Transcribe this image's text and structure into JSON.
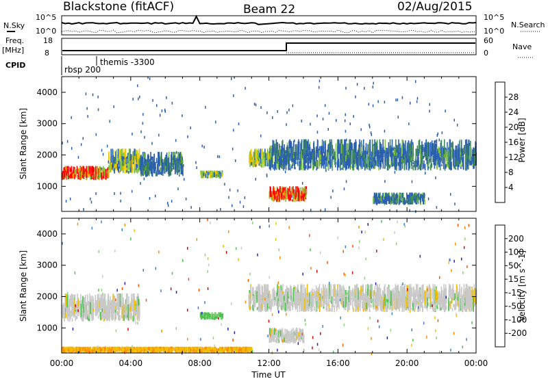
{
  "header": {
    "station": "Blackstone (fitACF)",
    "beam": "Beam 22",
    "date": "02/Aug/2015"
  },
  "top_panels": {
    "noise": {
      "left_label": "N.Sky",
      "right_label": "N.Search",
      "left_ticks": [
        "10^5",
        "10^0"
      ],
      "right_ticks": [
        "10^5",
        "10^0"
      ]
    },
    "freq": {
      "left_label_1": "Freq.",
      "left_label_2": "[MHz]",
      "right_label": "Nave",
      "left_ticks": [
        "18",
        "8"
      ],
      "right_ticks": [
        "60",
        "0"
      ]
    },
    "cpid": {
      "label": "CPID",
      "program_1": "rbsp 200",
      "program_2": "themis -3300"
    }
  },
  "chart_data": [
    {
      "type": "heatmap",
      "name": "power",
      "ylabel": "Slant Range [km]",
      "xlabel": "",
      "ylim": [
        200,
        4500
      ],
      "xlim": [
        "00:00",
        "24:00"
      ],
      "yticks": [
        "1000",
        "2000",
        "3000",
        "4000"
      ],
      "colorbar": {
        "label": "Power [dB]",
        "ticks": [
          "28",
          "24",
          "20",
          "16",
          "12",
          "8",
          "4"
        ],
        "colors": [
          "#ff0000",
          "#ff5a00",
          "#ff9600",
          "#f5c800",
          "#7fc241",
          "#3e8a5a",
          "#2a5fb0",
          "#0000ff"
        ]
      },
      "features": [
        {
          "t_start": 0.0,
          "t_end": 2.7,
          "range_low": 1200,
          "range_high": 1650,
          "level": "strong"
        },
        {
          "t_start": 2.7,
          "t_end": 4.5,
          "range_low": 1400,
          "range_high": 2200,
          "level": "medium"
        },
        {
          "t_start": 4.5,
          "t_end": 7.0,
          "range_low": 1300,
          "range_high": 2100,
          "level": "weak"
        },
        {
          "t_start": 8.0,
          "t_end": 9.3,
          "range_low": 1250,
          "range_high": 1500,
          "level": "medium"
        },
        {
          "t_start": 10.8,
          "t_end": 12.0,
          "range_low": 1600,
          "range_high": 2200,
          "level": "medium"
        },
        {
          "t_start": 12.0,
          "t_end": 24.0,
          "range_low": 1500,
          "range_high": 2500,
          "level": "weak"
        },
        {
          "t_start": 12.0,
          "t_end": 14.2,
          "range_low": 500,
          "range_high": 1000,
          "level": "strong"
        },
        {
          "t_start": 18.0,
          "t_end": 21.0,
          "range_low": 400,
          "range_high": 800,
          "level": "weak"
        }
      ]
    },
    {
      "type": "heatmap",
      "name": "velocity",
      "ylabel": "Slant Range [km]",
      "xlabel": "Time UT",
      "ylim": [
        200,
        4500
      ],
      "xlim": [
        "00:00",
        "24:00"
      ],
      "yticks": [
        "1000",
        "2000",
        "3000",
        "4000"
      ],
      "xticks": [
        "00:00",
        "04:00",
        "08:00",
        "12:00",
        "16:00",
        "20:00",
        "00:00"
      ],
      "colorbar": {
        "label": "Velocity [m s^-1]",
        "ticks": [
          "200",
          "100",
          "50",
          "15",
          "-15",
          "-50",
          "-100",
          "-200"
        ],
        "colors": [
          "#2020c0",
          "#3a7fd0",
          "#4dc24d",
          "#8fd27a",
          "#c8c8c8",
          "#f0c000",
          "#ff8a00",
          "#ff5000",
          "#e00000"
        ]
      },
      "features": [
        {
          "t_start": 0.0,
          "t_end": 4.5,
          "range_low": 1200,
          "range_high": 2100,
          "class": "ground"
        },
        {
          "t_start": 8.0,
          "t_end": 9.3,
          "range_low": 1250,
          "range_high": 1500,
          "class": "toward"
        },
        {
          "t_start": 10.8,
          "t_end": 24.0,
          "range_low": 1500,
          "range_high": 2400,
          "class": "ground"
        },
        {
          "t_start": 12.0,
          "t_end": 14.0,
          "range_low": 500,
          "range_high": 1000,
          "class": "ground"
        },
        {
          "t_start": 0.0,
          "t_end": 11.0,
          "range_low": 200,
          "range_high": 400,
          "class": "away"
        }
      ]
    }
  ]
}
